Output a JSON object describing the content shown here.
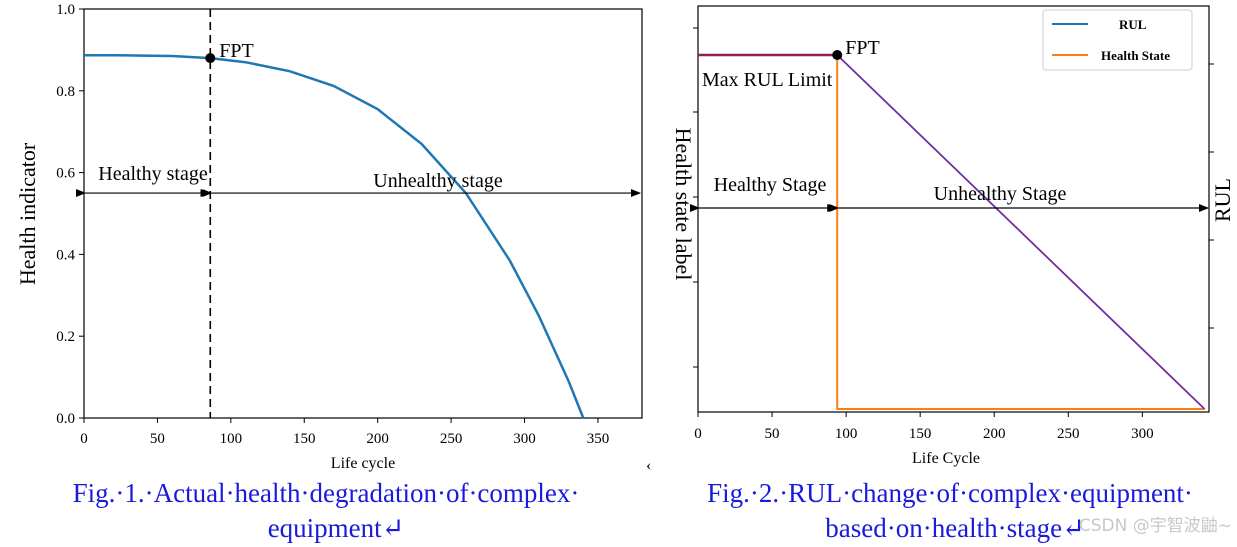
{
  "chart_data": [
    {
      "type": "line",
      "xlabel": "Life cycle",
      "ylabel": "Health indicator",
      "xlim": [
        0,
        380
      ],
      "ylim": [
        0,
        1.0
      ],
      "x_ticks": [
        "0",
        "50",
        "100",
        "150",
        "200",
        "250",
        "300",
        "350"
      ],
      "y_ticks": [
        "0.0",
        "0.2",
        "0.4",
        "0.6",
        "0.8",
        "1.0"
      ],
      "series": [
        {
          "color": "#1f77b4",
          "x": [
            0,
            20,
            40,
            60,
            86,
            110,
            140,
            170,
            200,
            230,
            260,
            290,
            310,
            330,
            340
          ],
          "y": [
            0.887,
            0.887,
            0.886,
            0.885,
            0.88,
            0.87,
            0.848,
            0.812,
            0.755,
            0.67,
            0.55,
            0.385,
            0.248,
            0.09,
            0.0
          ]
        }
      ],
      "fpt": {
        "label": "FPT",
        "x": 86,
        "y": 0.88
      },
      "stages": [
        {
          "label": "Healthy stage",
          "x_start": 0,
          "x_end": 86,
          "y": 0.55
        },
        {
          "label": "Unhealthy stage",
          "x_start": 86,
          "x_end": 380,
          "y": 0.55
        }
      ],
      "caption": "Fig.·1.·Actual·health·degradation·of·complex·equipment↵"
    },
    {
      "type": "line",
      "xlabel": "Life Cycle",
      "ylabel": "Health state label",
      "ylabel_right": "RUL",
      "xlim": [
        0,
        345
      ],
      "x_ticks": [
        "0",
        "50",
        "100",
        "150",
        "200",
        "250",
        "300"
      ],
      "legend": {
        "position": "top-right",
        "items": [
          {
            "label": "RUL",
            "color": "#1f77b4"
          },
          {
            "label": "Health State",
            "color": "#ff7f0e"
          }
        ]
      },
      "rul_series": {
        "color": "#7030a0",
        "x": [
          0,
          94,
          342
        ],
        "y": [
          1,
          1,
          0
        ]
      },
      "max_rul_segment": {
        "color": "#8b2252",
        "x": [
          0,
          94
        ]
      },
      "health_state_series": {
        "color": "#ff7f0e",
        "x": [
          94,
          94,
          342
        ],
        "y": [
          1,
          0,
          0
        ]
      },
      "fpt": {
        "label": "FPT",
        "x": 94
      },
      "max_rul_label": "Max RUL Limit",
      "stages": [
        {
          "label": "Healthy Stage",
          "x_start": 0,
          "x_end": 94
        },
        {
          "label": "Unhealthy Stage",
          "x_start": 94,
          "x_end": 345
        }
      ],
      "caption": "Fig.·2.·RUL·change·of·complex·equipment·based·on·health·stage↵"
    }
  ],
  "captions": {
    "fig1_line1": "Fig.·1.·Actual·health·degradation·of·complex·",
    "fig1_line2": "equipment↵",
    "fig2_line1": "Fig.·2.·RUL·change·of·complex·equipment·",
    "fig2_line2": "based·on·health·stage↵",
    "stray_mark": "‹",
    "watermark": "CSDN @宇智波鼬~"
  }
}
